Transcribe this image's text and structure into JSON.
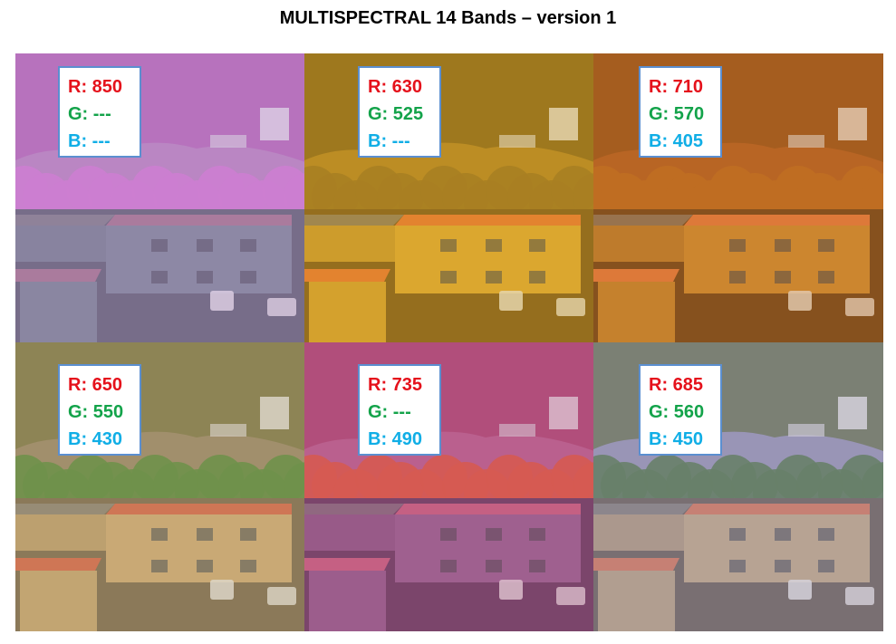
{
  "title": "MULTISPECTRAL 14 Bands – version 1",
  "colors": {
    "r_label": "#e5111b",
    "g_label": "#13a34a",
    "b_label": "#10aee6",
    "label_border": "#5b8fd0"
  },
  "panels": [
    {
      "r": "R: 850",
      "g": "G: ---",
      "b": "B: ---",
      "palette": {
        "sky": "#b47bb8",
        "hill": "#b05db0",
        "trees": "#d06fce",
        "wall": "#6f7f8a",
        "roof": "#9b6b7f",
        "ground": "#4e5560",
        "tint": "#c79cd6"
      }
    },
    {
      "r": "R: 630",
      "g": "G: 525",
      "b": "B: ---",
      "palette": {
        "sky": "#a87a1a",
        "hill": "#7a5a10",
        "trees": "#8a6516",
        "wall": "#d8a22a",
        "roof": "#e36a2a",
        "ground": "#6c4a10",
        "tint": "#e3b23a"
      }
    },
    {
      "r": "R: 710",
      "g": "G: 570",
      "b": "B: 405",
      "palette": {
        "sky": "#a8521a",
        "hill": "#8a4512",
        "trees": "#b35f16",
        "wall": "#c7852a",
        "roof": "#e0703a",
        "ground": "#5b3310",
        "tint": "#d88a3a"
      }
    },
    {
      "r": "R: 650",
      "g": "G: 550",
      "b": "B: 430",
      "palette": {
        "sky": "#8c7b5c",
        "hill": "#6e6a3a",
        "trees": "#3f7f2a",
        "wall": "#c9a46a",
        "roof": "#d3553a",
        "ground": "#6a5a3f",
        "tint": "#c9b48a"
      }
    },
    {
      "r": "R: 735",
      "g": "G: ---",
      "b": "B: 490",
      "palette": {
        "sky": "#b55a8a",
        "hill": "#a83e6e",
        "trees": "#e0502e",
        "wall": "#8d5a8d",
        "roof": "#c65a7a",
        "ground": "#553055",
        "tint": "#c46c96"
      }
    },
    {
      "r": "R: 685",
      "g": "G: 560",
      "b": "B: 450",
      "palette": {
        "sky": "#8a8ab0",
        "hill": "#5c6a4a",
        "trees": "#3f6a3a",
        "wall": "#b9a07a",
        "roof": "#d06a4a",
        "ground": "#5a5048",
        "tint": "#b4aac4"
      }
    }
  ]
}
